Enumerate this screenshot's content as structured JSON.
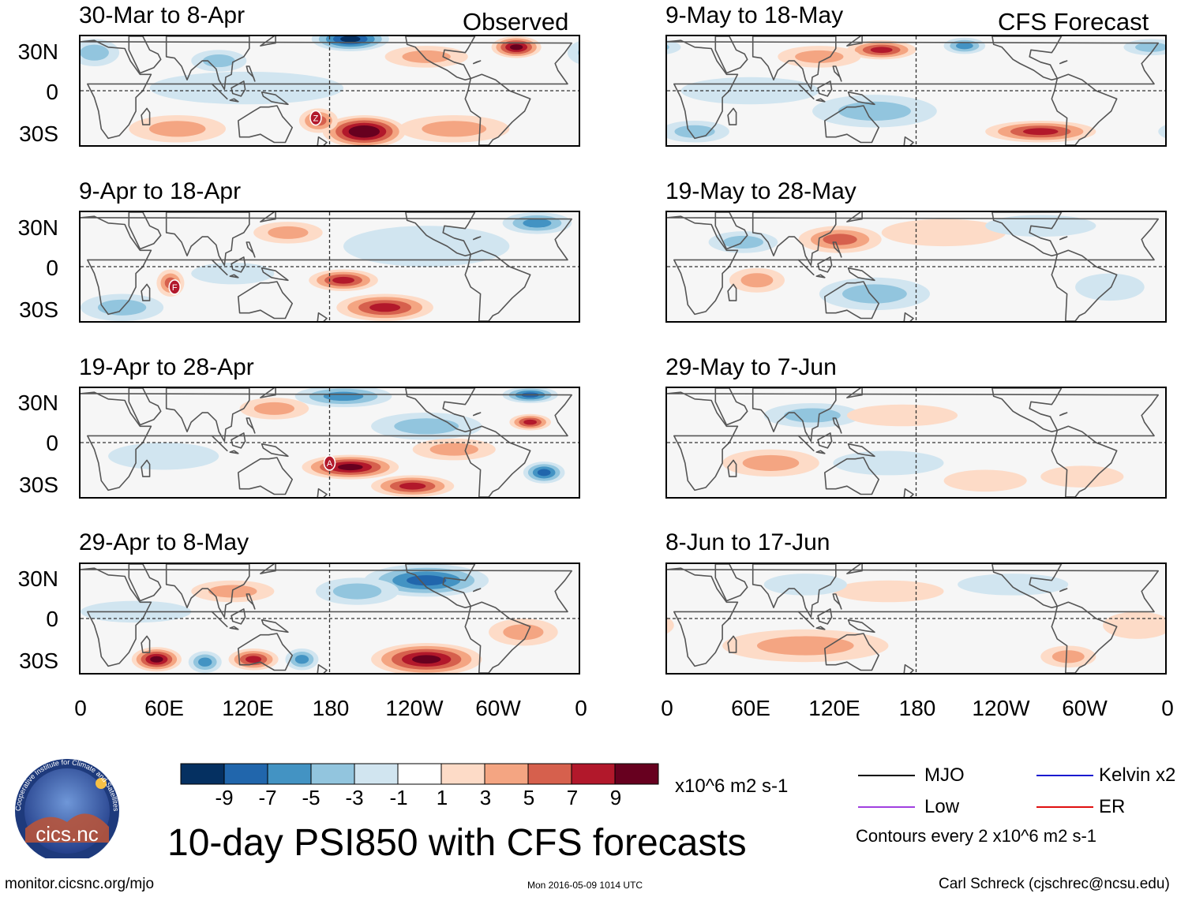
{
  "chart_data": {
    "type": "heatmap",
    "title": "10-day PSI850 with CFS forecasts",
    "variable": "PSI850 anomaly",
    "units": "x10^6 m2 s-1",
    "contour_interval_text": "Contours every 2 x10^6 m2 s-1",
    "observed_label": "Observed",
    "forecast_label": "CFS Forecast",
    "lat_ticks": [
      "30N",
      "0",
      "30S"
    ],
    "lon_ticks": [
      "0",
      "60E",
      "120E",
      "180",
      "120W",
      "60W",
      "0"
    ],
    "panels": [
      {
        "period": "30-Mar to 8-Apr",
        "kind": "observed",
        "storm": "Z",
        "blobs": [
          {
            "lon": 120,
            "lat": 2,
            "rx": 70,
            "ry": 12,
            "v": -2
          },
          {
            "lon": 205,
            "lat": -30,
            "rx": 30,
            "ry": 12,
            "v": 11
          },
          {
            "lon": 172,
            "lat": -22,
            "rx": 14,
            "ry": 9,
            "v": 6
          },
          {
            "lon": 195,
            "lat": 38,
            "rx": 28,
            "ry": 9,
            "v": -9
          },
          {
            "lon": 315,
            "lat": 32,
            "rx": 18,
            "ry": 8,
            "v": 9
          },
          {
            "lon": 70,
            "lat": -28,
            "rx": 35,
            "ry": 10,
            "v": 4
          },
          {
            "lon": 270,
            "lat": -28,
            "rx": 40,
            "ry": 10,
            "v": 3
          },
          {
            "lon": 10,
            "lat": 28,
            "rx": 18,
            "ry": 10,
            "v": -4
          },
          {
            "lon": 100,
            "lat": 22,
            "rx": 20,
            "ry": 8,
            "v": -3
          },
          {
            "lon": 250,
            "lat": 25,
            "rx": 30,
            "ry": 8,
            "v": 3
          }
        ]
      },
      {
        "period": "9-Apr to 18-Apr",
        "kind": "observed",
        "storm": "F",
        "blobs": [
          {
            "lon": 190,
            "lat": -10,
            "rx": 25,
            "ry": 8,
            "v": 7
          },
          {
            "lon": 220,
            "lat": -30,
            "rx": 35,
            "ry": 10,
            "v": 8
          },
          {
            "lon": 65,
            "lat": -12,
            "rx": 10,
            "ry": 10,
            "v": 6
          },
          {
            "lon": 250,
            "lat": 15,
            "rx": 60,
            "ry": 15,
            "v": -2
          },
          {
            "lon": 330,
            "lat": 32,
            "rx": 25,
            "ry": 8,
            "v": -5
          },
          {
            "lon": 150,
            "lat": 25,
            "rx": 25,
            "ry": 8,
            "v": 3
          },
          {
            "lon": 30,
            "lat": -30,
            "rx": 30,
            "ry": 10,
            "v": -3
          },
          {
            "lon": 110,
            "lat": -5,
            "rx": 30,
            "ry": 8,
            "v": -2
          }
        ]
      },
      {
        "period": "19-Apr to 28-Apr",
        "kind": "observed",
        "storm": "A",
        "blobs": [
          {
            "lon": 195,
            "lat": -18,
            "rx": 35,
            "ry": 9,
            "v": 10
          },
          {
            "lon": 240,
            "lat": -32,
            "rx": 30,
            "ry": 8,
            "v": 8
          },
          {
            "lon": 335,
            "lat": -22,
            "rx": 15,
            "ry": 8,
            "v": -7
          },
          {
            "lon": 325,
            "lat": 15,
            "rx": 15,
            "ry": 6,
            "v": 7
          },
          {
            "lon": 325,
            "lat": 35,
            "rx": 20,
            "ry": 6,
            "v": -8
          },
          {
            "lon": 190,
            "lat": 34,
            "rx": 35,
            "ry": 8,
            "v": -6
          },
          {
            "lon": 140,
            "lat": 25,
            "rx": 25,
            "ry": 8,
            "v": 4
          },
          {
            "lon": 250,
            "lat": 12,
            "rx": 40,
            "ry": 10,
            "v": -3
          },
          {
            "lon": 60,
            "lat": -10,
            "rx": 40,
            "ry": 10,
            "v": -2
          },
          {
            "lon": 270,
            "lat": -5,
            "rx": 30,
            "ry": 8,
            "v": 3
          }
        ]
      },
      {
        "period": "29-Apr to 8-May",
        "kind": "observed",
        "storm": "",
        "blobs": [
          {
            "lon": 250,
            "lat": -30,
            "rx": 40,
            "ry": 12,
            "v": 10
          },
          {
            "lon": 55,
            "lat": -30,
            "rx": 18,
            "ry": 9,
            "v": 9
          },
          {
            "lon": 125,
            "lat": -30,
            "rx": 18,
            "ry": 8,
            "v": 8
          },
          {
            "lon": 90,
            "lat": -32,
            "rx": 12,
            "ry": 8,
            "v": -6
          },
          {
            "lon": 160,
            "lat": -30,
            "rx": 12,
            "ry": 8,
            "v": -6
          },
          {
            "lon": 250,
            "lat": 28,
            "rx": 45,
            "ry": 12,
            "v": -8
          },
          {
            "lon": 200,
            "lat": 20,
            "rx": 30,
            "ry": 10,
            "v": -4
          },
          {
            "lon": 110,
            "lat": 20,
            "rx": 30,
            "ry": 8,
            "v": 3
          },
          {
            "lon": 40,
            "lat": 5,
            "rx": 40,
            "ry": 8,
            "v": -2
          },
          {
            "lon": 320,
            "lat": -10,
            "rx": 25,
            "ry": 10,
            "v": 3
          }
        ]
      },
      {
        "period": "9-May to 18-May",
        "kind": "forecast",
        "storm": "",
        "blobs": [
          {
            "lon": 150,
            "lat": -15,
            "rx": 45,
            "ry": 12,
            "v": -3
          },
          {
            "lon": 270,
            "lat": -30,
            "rx": 40,
            "ry": 8,
            "v": 7
          },
          {
            "lon": 155,
            "lat": 30,
            "rx": 25,
            "ry": 7,
            "v": 8
          },
          {
            "lon": 215,
            "lat": 33,
            "rx": 15,
            "ry": 6,
            "v": -5
          },
          {
            "lon": 350,
            "lat": 32,
            "rx": 20,
            "ry": 6,
            "v": -4
          },
          {
            "lon": 110,
            "lat": 25,
            "rx": 30,
            "ry": 8,
            "v": 3
          },
          {
            "lon": 60,
            "lat": 0,
            "rx": 50,
            "ry": 10,
            "v": -2
          },
          {
            "lon": 20,
            "lat": -30,
            "rx": 25,
            "ry": 8,
            "v": -3
          }
        ]
      },
      {
        "period": "19-May to 28-May",
        "kind": "forecast",
        "storm": "",
        "blobs": [
          {
            "lon": 125,
            "lat": 20,
            "rx": 30,
            "ry": 10,
            "v": 6
          },
          {
            "lon": 150,
            "lat": -20,
            "rx": 40,
            "ry": 12,
            "v": -3
          },
          {
            "lon": 65,
            "lat": -10,
            "rx": 20,
            "ry": 9,
            "v": 4
          },
          {
            "lon": 200,
            "lat": 25,
            "rx": 45,
            "ry": 10,
            "v": 2
          },
          {
            "lon": 270,
            "lat": 30,
            "rx": 40,
            "ry": 8,
            "v": -2
          },
          {
            "lon": 55,
            "lat": 18,
            "rx": 25,
            "ry": 8,
            "v": -3
          },
          {
            "lon": 320,
            "lat": -15,
            "rx": 25,
            "ry": 10,
            "v": -2
          }
        ]
      },
      {
        "period": "29-May to 7-Jun",
        "kind": "forecast",
        "storm": "",
        "blobs": [
          {
            "lon": 75,
            "lat": -15,
            "rx": 35,
            "ry": 10,
            "v": 4
          },
          {
            "lon": 105,
            "lat": 20,
            "rx": 35,
            "ry": 9,
            "v": -3
          },
          {
            "lon": 170,
            "lat": 20,
            "rx": 40,
            "ry": 8,
            "v": 2
          },
          {
            "lon": 160,
            "lat": -15,
            "rx": 40,
            "ry": 9,
            "v": -2
          },
          {
            "lon": 300,
            "lat": -25,
            "rx": 30,
            "ry": 8,
            "v": 2
          },
          {
            "lon": 230,
            "lat": -28,
            "rx": 30,
            "ry": 8,
            "v": 2
          }
        ]
      },
      {
        "period": "8-Jun to 17-Jun",
        "kind": "forecast",
        "storm": "",
        "blobs": [
          {
            "lon": 100,
            "lat": -20,
            "rx": 60,
            "ry": 12,
            "v": 3
          },
          {
            "lon": 160,
            "lat": 20,
            "rx": 40,
            "ry": 8,
            "v": 2
          },
          {
            "lon": 100,
            "lat": 25,
            "rx": 30,
            "ry": 8,
            "v": -2
          },
          {
            "lon": 250,
            "lat": 25,
            "rx": 40,
            "ry": 8,
            "v": -2
          },
          {
            "lon": 290,
            "lat": -28,
            "rx": 20,
            "ry": 8,
            "v": 4
          },
          {
            "lon": 340,
            "lat": -5,
            "rx": 25,
            "ry": 10,
            "v": 2
          }
        ]
      }
    ],
    "colorbar": {
      "tick_labels": [
        "-9",
        "-7",
        "-5",
        "-3",
        "-1",
        "1",
        "3",
        "5",
        "7",
        "9"
      ],
      "colors": [
        "#053061",
        "#2166ac",
        "#4393c3",
        "#92c5de",
        "#d1e5f0",
        "#ffffff",
        "#fddbc7",
        "#f4a582",
        "#d6604d",
        "#b2182b",
        "#67001f"
      ]
    },
    "legend": [
      {
        "label": "MJO",
        "color": "#000000"
      },
      {
        "label": "Kelvin x2",
        "color": "#1a1ad0"
      },
      {
        "label": "Low",
        "color": "#a040e0"
      },
      {
        "label": "ER",
        "color": "#e01010"
      }
    ]
  },
  "footer": {
    "logo_text": "cics.nc",
    "logo_arc_text": "Cooperative Institute for Climate and Satellites",
    "url": "monitor.cicsnc.org/mjo",
    "timestamp": "Mon 2016-05-09 1014 UTC",
    "author": "Carl Schreck (cjschrec@ncsu.edu)"
  }
}
